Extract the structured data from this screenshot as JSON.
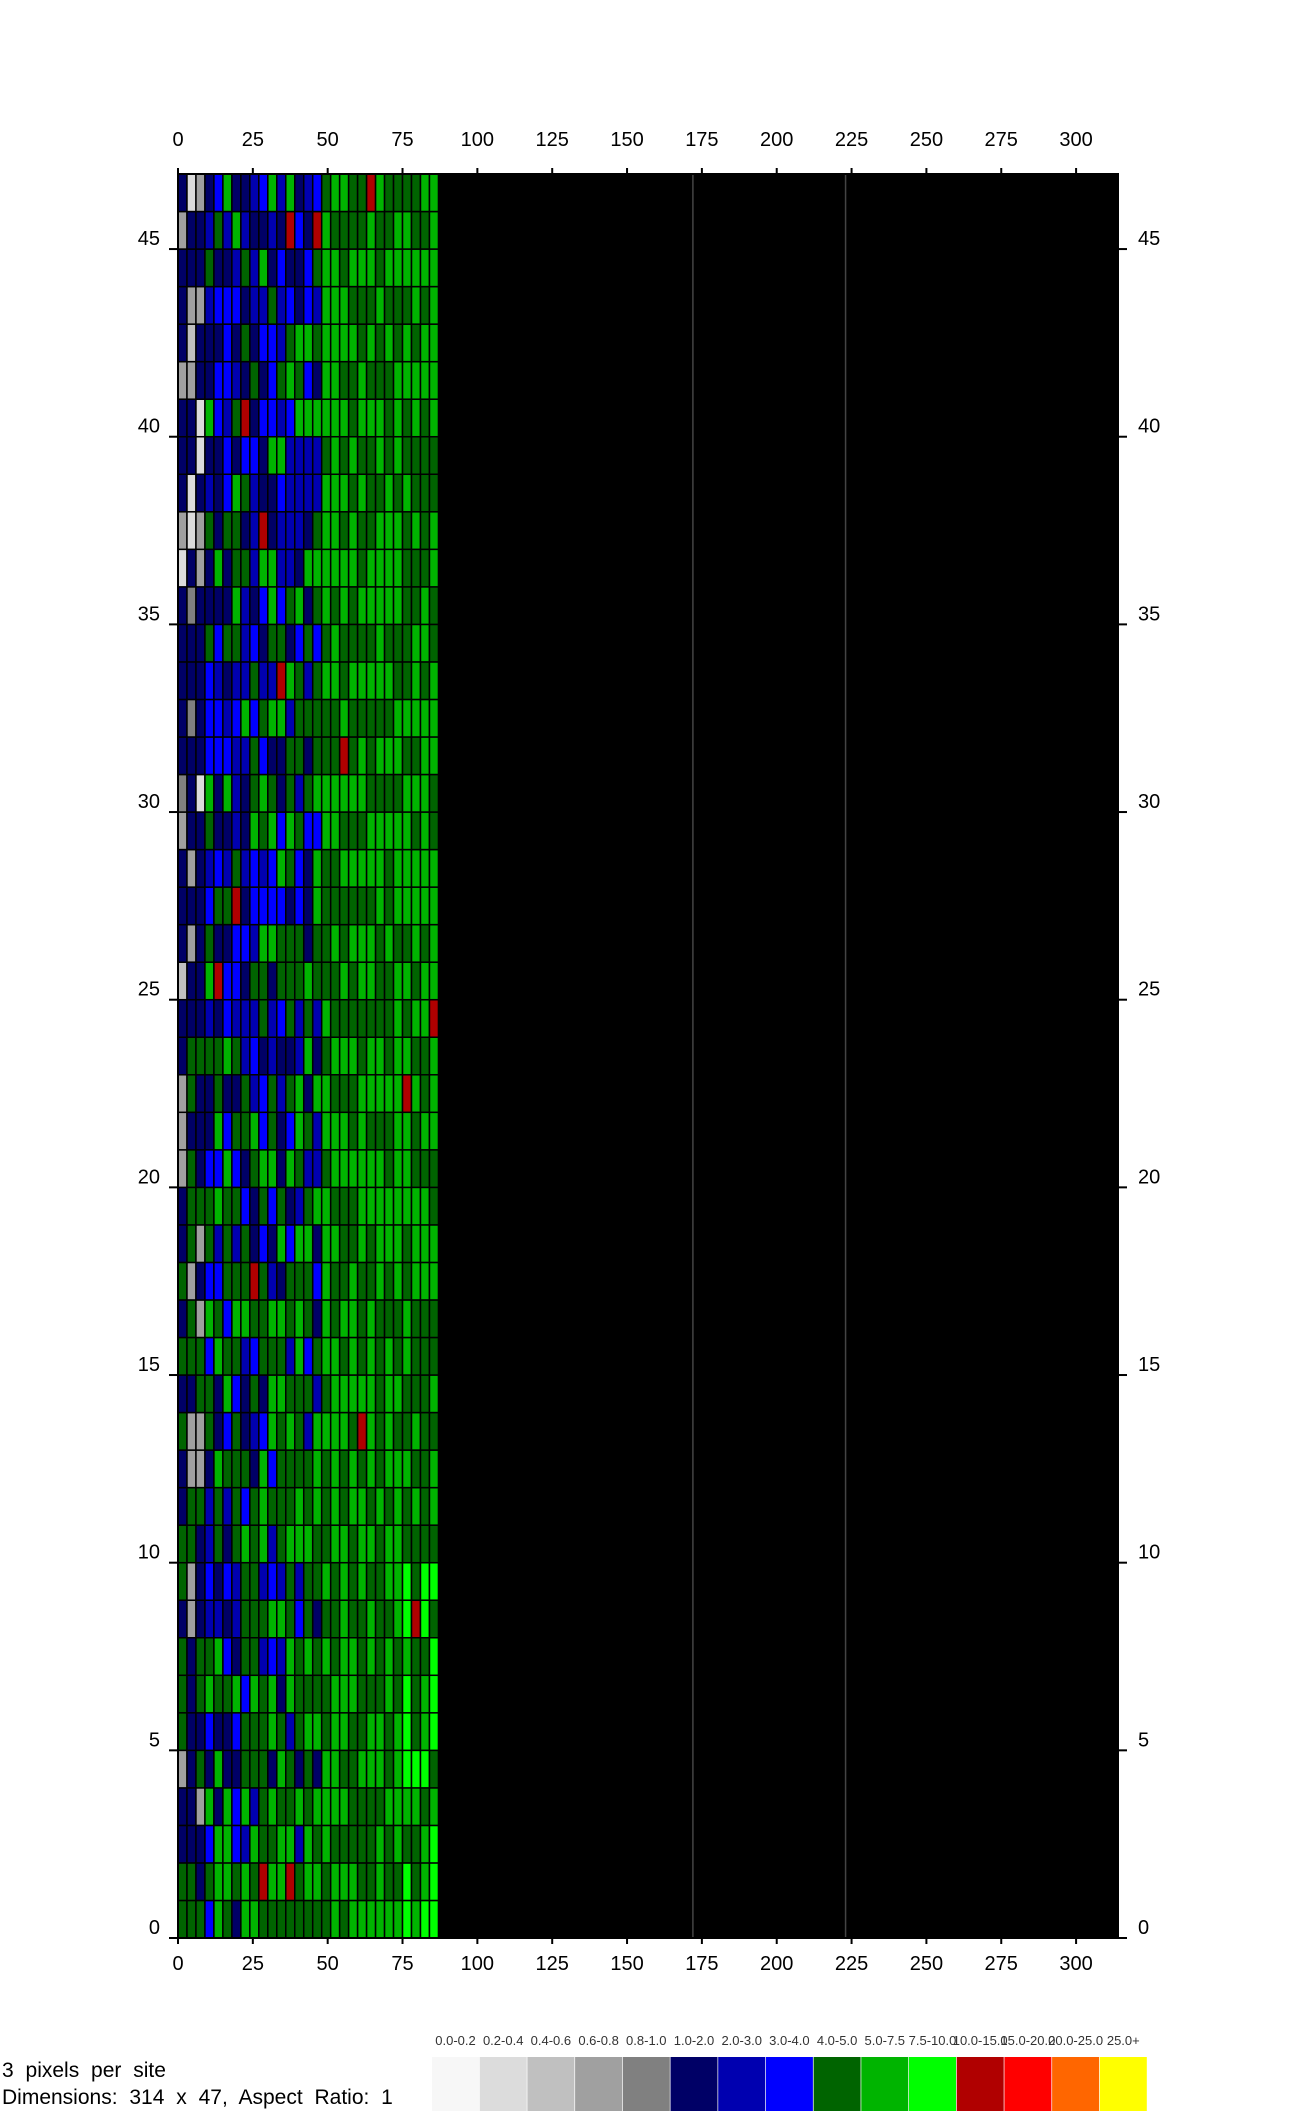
{
  "chart_data": {
    "type": "heatmap",
    "title": "",
    "xlabel": "",
    "ylabel": "",
    "xlim": [
      0,
      314
    ],
    "ylim": [
      0,
      47
    ],
    "x_ticks": [
      0,
      25,
      50,
      75,
      100,
      125,
      150,
      175,
      200,
      225,
      250,
      275,
      300
    ],
    "y_ticks": [
      0,
      5,
      10,
      15,
      20,
      25,
      30,
      35,
      40,
      45
    ],
    "grid": false,
    "data_extent": {
      "x": [
        0,
        87
      ],
      "y": [
        0,
        47
      ]
    },
    "empty_region_color": "#000000",
    "legend": {
      "placement": "bottom-right",
      "bins": [
        {
          "label": "0.0-0.2",
          "color": "#f7f7f7"
        },
        {
          "label": "0.2-0.4",
          "color": "#dcdcdc"
        },
        {
          "label": "0.4-0.6",
          "color": "#c0c0c0"
        },
        {
          "label": "0.6-0.8",
          "color": "#a0a0a0"
        },
        {
          "label": "0.8-1.0",
          "color": "#808080"
        },
        {
          "label": "1.0-2.0",
          "color": "#000066"
        },
        {
          "label": "2.0-3.0",
          "color": "#0000b0"
        },
        {
          "label": "3.0-4.0",
          "color": "#0000ff"
        },
        {
          "label": "4.0-5.0",
          "color": "#006400"
        },
        {
          "label": "5.0-7.5",
          "color": "#00b400"
        },
        {
          "label": "7.5-10.0",
          "color": "#00ff00"
        },
        {
          "label": "10.0-15.0",
          "color": "#b00000"
        },
        {
          "label": "15.0-20.0",
          "color": "#ff0000"
        },
        {
          "label": "20.0-25.0",
          "color": "#ff6600"
        },
        {
          "label": "25.0+",
          "color": "#ffff00"
        }
      ]
    }
  },
  "info": {
    "line1": "3 pixels per site",
    "line2": "Dimensions: 314 x 47, Aspect Ratio: 1"
  }
}
